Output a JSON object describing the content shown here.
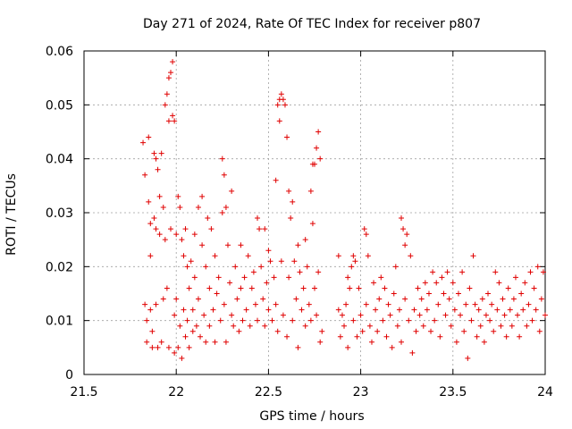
{
  "chart_data": {
    "type": "scatter",
    "title": "Day 271 of 2024, Rate Of TEC Index for receiver p807",
    "xlabel": "GPS time / hours",
    "ylabel": "ROTI / TECUs",
    "xlim": [
      21.5,
      24
    ],
    "ylim": [
      0,
      0.06
    ],
    "xticks": [
      21.5,
      22,
      22.5,
      23,
      23.5,
      24
    ],
    "xtick_labels": [
      "21.5",
      "22",
      "22.5",
      "23",
      "23.5",
      "24"
    ],
    "yticks": [
      0,
      0.01,
      0.02,
      0.03,
      0.04,
      0.05,
      0.06
    ],
    "ytick_labels": [
      "0",
      "0.01",
      "0.02",
      "0.03",
      "0.04",
      "0.05",
      "0.06"
    ],
    "grid": true,
    "marker": "plus",
    "marker_color": "#e00000",
    "series": [
      {
        "name": "ROTI",
        "points": [
          [
            21.82,
            0.043
          ],
          [
            21.83,
            0.037
          ],
          [
            21.83,
            0.013
          ],
          [
            21.84,
            0.01
          ],
          [
            21.84,
            0.006
          ],
          [
            21.85,
            0.044
          ],
          [
            21.85,
            0.032
          ],
          [
            21.86,
            0.028
          ],
          [
            21.86,
            0.022
          ],
          [
            21.86,
            0.012
          ],
          [
            21.87,
            0.008
          ],
          [
            21.87,
            0.005
          ],
          [
            21.88,
            0.041
          ],
          [
            21.88,
            0.029
          ],
          [
            21.89,
            0.04
          ],
          [
            21.89,
            0.027
          ],
          [
            21.89,
            0.013
          ],
          [
            21.9,
            0.005
          ],
          [
            21.9,
            0.038
          ],
          [
            21.91,
            0.033
          ],
          [
            21.91,
            0.026
          ],
          [
            21.92,
            0.041
          ],
          [
            21.92,
            0.006
          ],
          [
            21.93,
            0.031
          ],
          [
            21.93,
            0.014
          ],
          [
            21.94,
            0.05
          ],
          [
            21.94,
            0.025
          ],
          [
            21.95,
            0.052
          ],
          [
            21.95,
            0.016
          ],
          [
            21.96,
            0.055
          ],
          [
            21.96,
            0.047
          ],
          [
            21.96,
            0.005
          ],
          [
            21.97,
            0.056
          ],
          [
            21.97,
            0.027
          ],
          [
            21.98,
            0.058
          ],
          [
            21.98,
            0.048
          ],
          [
            21.99,
            0.047
          ],
          [
            21.99,
            0.011
          ],
          [
            21.99,
            0.004
          ],
          [
            22.0,
            0.026
          ],
          [
            22.0,
            0.014
          ],
          [
            22.01,
            0.033
          ],
          [
            22.01,
            0.005
          ],
          [
            22.02,
            0.031
          ],
          [
            22.02,
            0.009
          ],
          [
            22.03,
            0.025
          ],
          [
            22.03,
            0.003
          ],
          [
            22.04,
            0.022
          ],
          [
            22.04,
            0.012
          ],
          [
            22.05,
            0.027
          ],
          [
            22.05,
            0.007
          ],
          [
            22.06,
            0.02
          ],
          [
            22.06,
            0.01
          ],
          [
            22.07,
            0.016
          ],
          [
            22.07,
            0.005
          ],
          [
            22.08,
            0.021
          ],
          [
            22.09,
            0.012
          ],
          [
            22.09,
            0.008
          ],
          [
            22.1,
            0.026
          ],
          [
            22.1,
            0.018
          ],
          [
            22.11,
            0.009
          ],
          [
            22.12,
            0.031
          ],
          [
            22.12,
            0.014
          ],
          [
            22.13,
            0.007
          ],
          [
            22.14,
            0.033
          ],
          [
            22.14,
            0.024
          ],
          [
            22.15,
            0.011
          ],
          [
            22.16,
            0.02
          ],
          [
            22.16,
            0.006
          ],
          [
            22.17,
            0.029
          ],
          [
            22.18,
            0.016
          ],
          [
            22.18,
            0.009
          ],
          [
            22.19,
            0.027
          ],
          [
            22.2,
            0.012
          ],
          [
            22.21,
            0.022
          ],
          [
            22.21,
            0.006
          ],
          [
            22.22,
            0.015
          ],
          [
            22.23,
            0.018
          ],
          [
            22.24,
            0.01
          ],
          [
            22.25,
            0.04
          ],
          [
            22.25,
            0.03
          ],
          [
            22.26,
            0.037
          ],
          [
            22.26,
            0.013
          ],
          [
            22.27,
            0.031
          ],
          [
            22.27,
            0.006
          ],
          [
            22.28,
            0.024
          ],
          [
            22.29,
            0.017
          ],
          [
            22.3,
            0.034
          ],
          [
            22.3,
            0.011
          ],
          [
            22.31,
            0.009
          ],
          [
            22.32,
            0.02
          ],
          [
            22.33,
            0.014
          ],
          [
            22.34,
            0.008
          ],
          [
            22.35,
            0.024
          ],
          [
            22.35,
            0.016
          ],
          [
            22.36,
            0.01
          ],
          [
            22.37,
            0.018
          ],
          [
            22.38,
            0.012
          ],
          [
            22.39,
            0.022
          ],
          [
            22.4,
            0.009
          ],
          [
            22.41,
            0.016
          ],
          [
            22.42,
            0.019
          ],
          [
            22.43,
            0.013
          ],
          [
            22.44,
            0.029
          ],
          [
            22.44,
            0.01
          ],
          [
            22.45,
            0.027
          ],
          [
            22.46,
            0.02
          ],
          [
            22.47,
            0.014
          ],
          [
            22.48,
            0.027
          ],
          [
            22.48,
            0.009
          ],
          [
            22.49,
            0.017
          ],
          [
            22.5,
            0.023
          ],
          [
            22.5,
            0.012
          ],
          [
            22.51,
            0.021
          ],
          [
            22.52,
            0.01
          ],
          [
            22.53,
            0.018
          ],
          [
            22.54,
            0.036
          ],
          [
            22.54,
            0.013
          ],
          [
            22.55,
            0.05
          ],
          [
            22.55,
            0.008
          ],
          [
            22.56,
            0.051
          ],
          [
            22.56,
            0.047
          ],
          [
            22.57,
            0.052
          ],
          [
            22.57,
            0.021
          ],
          [
            22.58,
            0.051
          ],
          [
            22.58,
            0.011
          ],
          [
            22.59,
            0.05
          ],
          [
            22.6,
            0.044
          ],
          [
            22.6,
            0.007
          ],
          [
            22.61,
            0.034
          ],
          [
            22.61,
            0.018
          ],
          [
            22.62,
            0.029
          ],
          [
            22.63,
            0.032
          ],
          [
            22.63,
            0.01
          ],
          [
            22.64,
            0.021
          ],
          [
            22.65,
            0.014
          ],
          [
            22.66,
            0.024
          ],
          [
            22.66,
            0.005
          ],
          [
            22.67,
            0.019
          ],
          [
            22.68,
            0.012
          ],
          [
            22.69,
            0.016
          ],
          [
            22.7,
            0.025
          ],
          [
            22.7,
            0.009
          ],
          [
            22.71,
            0.02
          ],
          [
            22.72,
            0.013
          ],
          [
            22.73,
            0.034
          ],
          [
            22.73,
            0.01
          ],
          [
            22.74,
            0.039
          ],
          [
            22.74,
            0.028
          ],
          [
            22.75,
            0.039
          ],
          [
            22.75,
            0.016
          ],
          [
            22.76,
            0.042
          ],
          [
            22.76,
            0.011
          ],
          [
            22.77,
            0.045
          ],
          [
            22.77,
            0.019
          ],
          [
            22.78,
            0.04
          ],
          [
            22.78,
            0.006
          ],
          [
            22.79,
            0.008
          ],
          [
            22.88,
            0.022
          ],
          [
            22.88,
            0.012
          ],
          [
            22.89,
            0.007
          ],
          [
            22.9,
            0.011
          ],
          [
            22.91,
            0.009
          ],
          [
            22.92,
            0.013
          ],
          [
            22.93,
            0.018
          ],
          [
            22.93,
            0.005
          ],
          [
            22.94,
            0.016
          ],
          [
            22.95,
            0.02
          ],
          [
            22.96,
            0.022
          ],
          [
            22.96,
            0.01
          ],
          [
            22.97,
            0.021
          ],
          [
            22.98,
            0.007
          ],
          [
            22.99,
            0.016
          ],
          [
            23.0,
            0.011
          ],
          [
            23.01,
            0.008
          ],
          [
            23.02,
            0.027
          ],
          [
            23.03,
            0.026
          ],
          [
            23.03,
            0.013
          ],
          [
            23.04,
            0.022
          ],
          [
            23.05,
            0.009
          ],
          [
            23.06,
            0.006
          ],
          [
            23.07,
            0.017
          ],
          [
            23.08,
            0.012
          ],
          [
            23.09,
            0.008
          ],
          [
            23.1,
            0.014
          ],
          [
            23.11,
            0.018
          ],
          [
            23.12,
            0.01
          ],
          [
            23.13,
            0.016
          ],
          [
            23.14,
            0.007
          ],
          [
            23.15,
            0.013
          ],
          [
            23.16,
            0.011
          ],
          [
            23.17,
            0.005
          ],
          [
            23.18,
            0.015
          ],
          [
            23.19,
            0.02
          ],
          [
            23.2,
            0.009
          ],
          [
            23.21,
            0.012
          ],
          [
            23.22,
            0.029
          ],
          [
            23.22,
            0.006
          ],
          [
            23.23,
            0.027
          ],
          [
            23.24,
            0.024
          ],
          [
            23.24,
            0.014
          ],
          [
            23.25,
            0.026
          ],
          [
            23.26,
            0.01
          ],
          [
            23.27,
            0.022
          ],
          [
            23.28,
            0.004
          ],
          [
            23.29,
            0.012
          ],
          [
            23.3,
            0.008
          ],
          [
            23.31,
            0.016
          ],
          [
            23.32,
            0.011
          ],
          [
            23.33,
            0.014
          ],
          [
            23.34,
            0.009
          ],
          [
            23.35,
            0.017
          ],
          [
            23.36,
            0.012
          ],
          [
            23.37,
            0.015
          ],
          [
            23.38,
            0.008
          ],
          [
            23.39,
            0.019
          ],
          [
            23.4,
            0.01
          ],
          [
            23.41,
            0.017
          ],
          [
            23.42,
            0.013
          ],
          [
            23.43,
            0.007
          ],
          [
            23.44,
            0.018
          ],
          [
            23.45,
            0.015
          ],
          [
            23.46,
            0.011
          ],
          [
            23.47,
            0.019
          ],
          [
            23.48,
            0.014
          ],
          [
            23.49,
            0.009
          ],
          [
            23.5,
            0.017
          ],
          [
            23.51,
            0.012
          ],
          [
            23.52,
            0.006
          ],
          [
            23.53,
            0.015
          ],
          [
            23.54,
            0.011
          ],
          [
            23.55,
            0.019
          ],
          [
            23.56,
            0.008
          ],
          [
            23.57,
            0.013
          ],
          [
            23.58,
            0.003
          ],
          [
            23.59,
            0.016
          ],
          [
            23.6,
            0.01
          ],
          [
            23.61,
            0.022
          ],
          [
            23.62,
            0.013
          ],
          [
            23.63,
            0.007
          ],
          [
            23.64,
            0.012
          ],
          [
            23.65,
            0.009
          ],
          [
            23.66,
            0.014
          ],
          [
            23.67,
            0.006
          ],
          [
            23.68,
            0.011
          ],
          [
            23.69,
            0.015
          ],
          [
            23.7,
            0.01
          ],
          [
            23.71,
            0.013
          ],
          [
            23.72,
            0.008
          ],
          [
            23.73,
            0.019
          ],
          [
            23.74,
            0.012
          ],
          [
            23.75,
            0.017
          ],
          [
            23.76,
            0.009
          ],
          [
            23.77,
            0.014
          ],
          [
            23.78,
            0.011
          ],
          [
            23.79,
            0.007
          ],
          [
            23.8,
            0.016
          ],
          [
            23.81,
            0.012
          ],
          [
            23.82,
            0.009
          ],
          [
            23.83,
            0.014
          ],
          [
            23.84,
            0.018
          ],
          [
            23.85,
            0.011
          ],
          [
            23.86,
            0.007
          ],
          [
            23.87,
            0.015
          ],
          [
            23.88,
            0.012
          ],
          [
            23.89,
            0.017
          ],
          [
            23.9,
            0.009
          ],
          [
            23.91,
            0.013
          ],
          [
            23.92,
            0.019
          ],
          [
            23.93,
            0.01
          ],
          [
            23.94,
            0.016
          ],
          [
            23.95,
            0.012
          ],
          [
            23.96,
            0.02
          ],
          [
            23.97,
            0.008
          ],
          [
            23.98,
            0.014
          ],
          [
            23.99,
            0.019
          ],
          [
            24.0,
            0.011
          ]
        ]
      }
    ]
  }
}
